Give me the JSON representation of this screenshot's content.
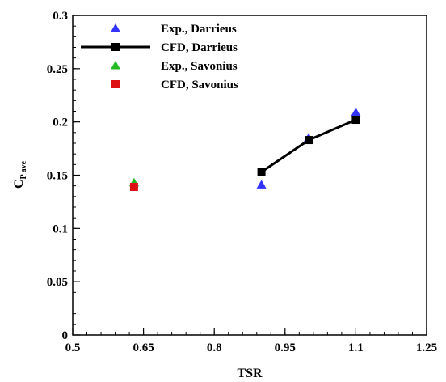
{
  "chart_data": {
    "type": "scatter",
    "xlabel": "TSR",
    "ylabel_main": "C",
    "ylabel_sub": "P ave",
    "xlim": [
      0.5,
      1.25
    ],
    "ylim": [
      0,
      0.3
    ],
    "xticks": [
      0.5,
      0.65,
      0.8,
      0.95,
      1.1,
      1.25
    ],
    "xtick_labels": [
      "0.5",
      "0.65",
      "0.8",
      "0.95",
      "1.1",
      "1.25"
    ],
    "yticks": [
      0,
      0.05,
      0.1,
      0.15,
      0.2,
      0.25,
      0.3
    ],
    "ytick_labels": [
      "0",
      "0.05",
      "0.1",
      "0.15",
      "0.2",
      "0.25",
      "0.3"
    ],
    "grid": false,
    "legend_position": "top-left",
    "series": [
      {
        "name": "Exp., Darrieus",
        "marker": "triangle",
        "line": false,
        "color": "#3333ff",
        "x": [
          0.9,
          1.0,
          1.1
        ],
        "y": [
          0.141,
          0.185,
          0.209
        ]
      },
      {
        "name": "CFD, Darrieus",
        "marker": "square",
        "line": true,
        "color": "#000000",
        "x": [
          0.9,
          1.0,
          1.1
        ],
        "y": [
          0.153,
          0.183,
          0.202
        ]
      },
      {
        "name": "Exp., Savonius",
        "marker": "triangle",
        "line": false,
        "color": "#22bb22",
        "x": [
          0.63
        ],
        "y": [
          0.143
        ]
      },
      {
        "name": "CFD, Savonius",
        "marker": "square",
        "line": false,
        "color": "#dd1111",
        "x": [
          0.63
        ],
        "y": [
          0.139
        ]
      }
    ]
  }
}
